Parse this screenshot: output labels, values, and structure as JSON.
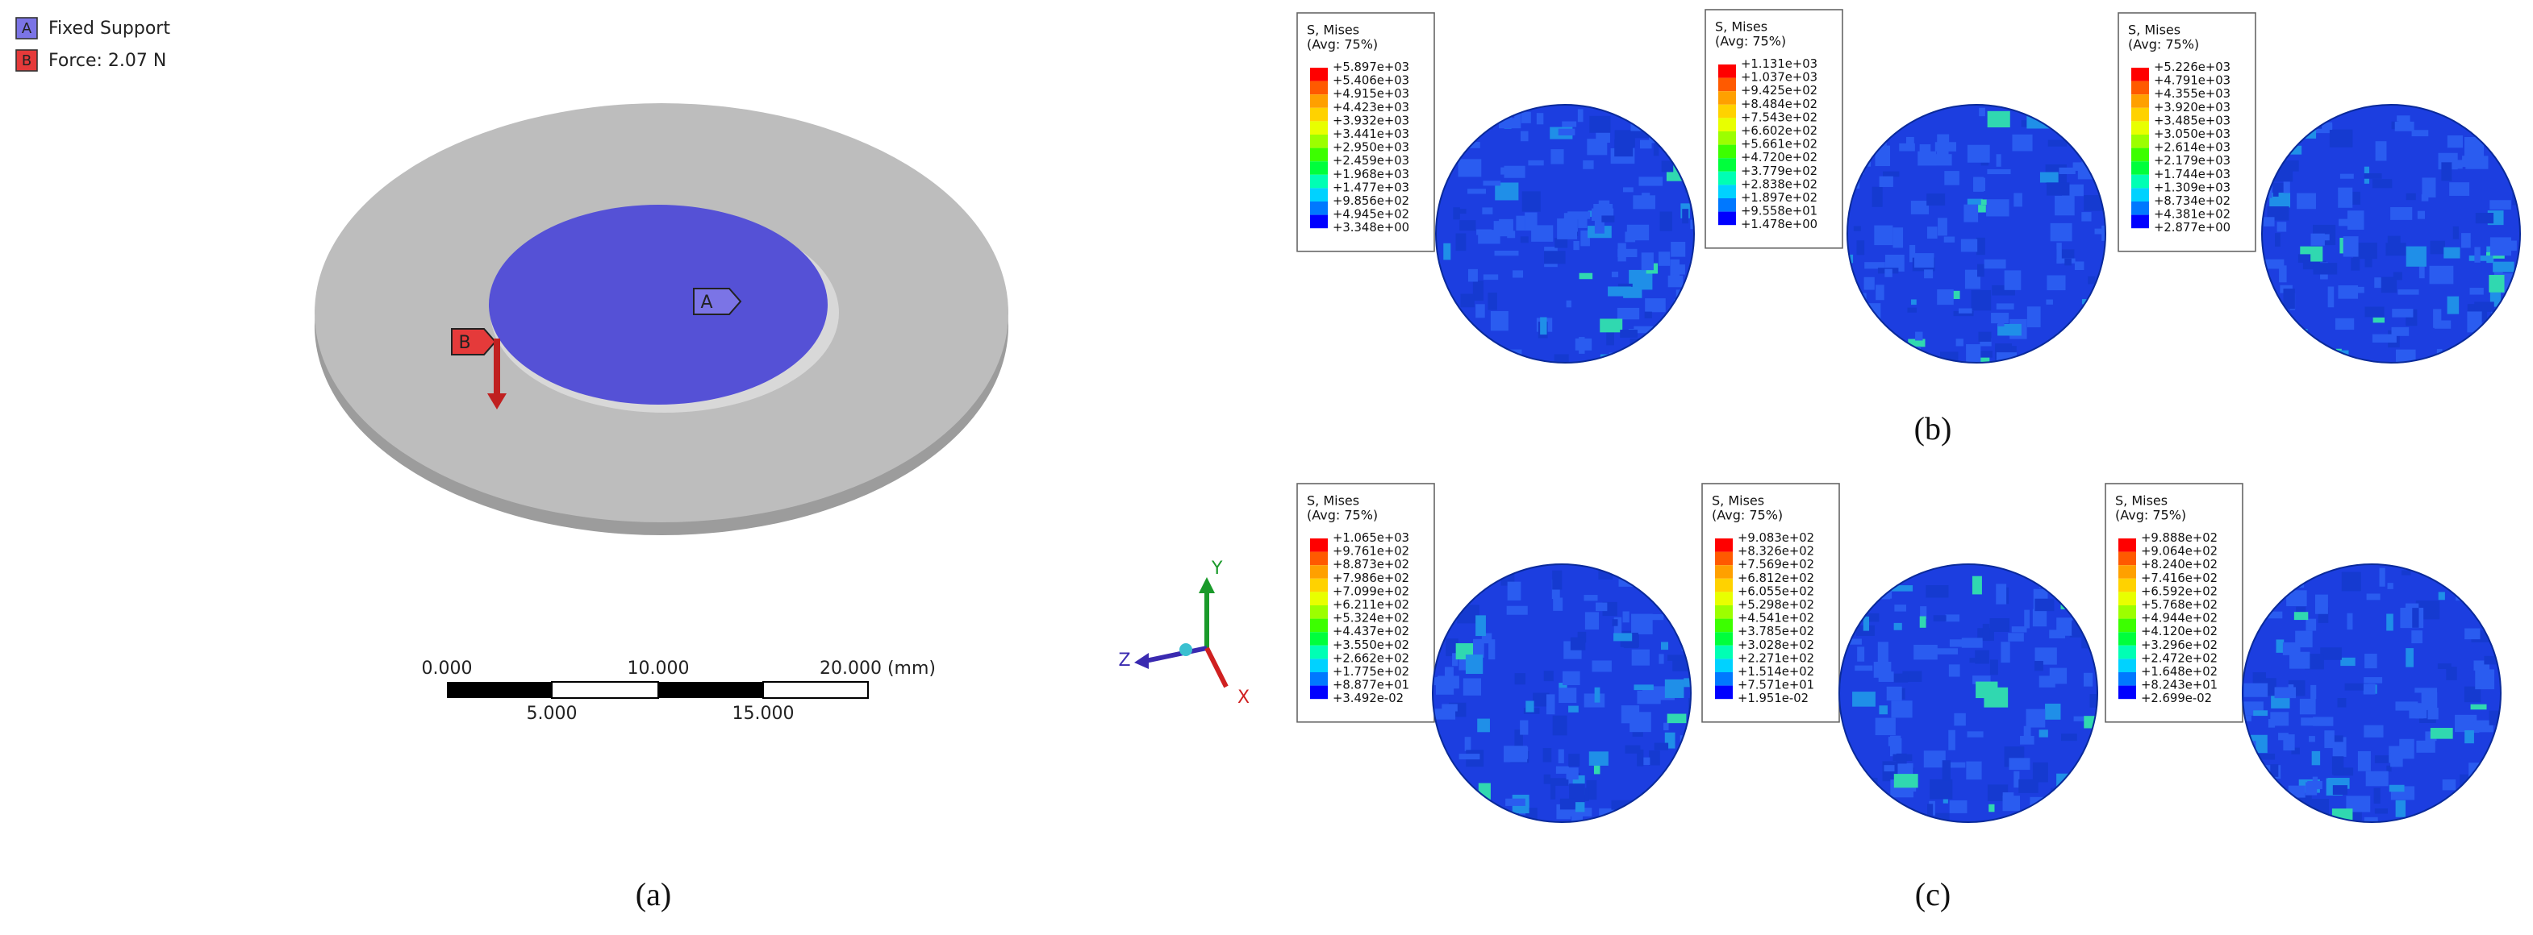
{
  "panel_a": {
    "legend": [
      {
        "tag": "A",
        "label": "Fixed Support"
      },
      {
        "tag": "B",
        "label": "Force: 2.07 N"
      }
    ],
    "scale_bar": {
      "top_labels": [
        "0.000",
        "10.000",
        "20.000 (mm)"
      ],
      "bottom_labels": [
        "5.000",
        "15.000"
      ]
    },
    "caption": "(a)"
  },
  "triad": {
    "y": "Y",
    "z": "Z",
    "x": "X"
  },
  "panel_b": {
    "caption": "(b)",
    "legends": [
      {
        "title": "S, Mises",
        "subtitle": "(Avg: 75%)",
        "values": [
          "+5.897e+03",
          "+5.406e+03",
          "+4.915e+03",
          "+4.423e+03",
          "+3.932e+03",
          "+3.441e+03",
          "+2.950e+03",
          "+2.459e+03",
          "+1.968e+03",
          "+1.477e+03",
          "+9.856e+02",
          "+4.945e+02",
          "+3.348e+00"
        ]
      },
      {
        "title": "S, Mises",
        "subtitle": "(Avg: 75%)",
        "values": [
          "+1.131e+03",
          "+1.037e+03",
          "+9.425e+02",
          "+8.484e+02",
          "+7.543e+02",
          "+6.602e+02",
          "+5.661e+02",
          "+4.720e+02",
          "+3.779e+02",
          "+2.838e+02",
          "+1.897e+02",
          "+9.558e+01",
          "+1.478e+00"
        ]
      },
      {
        "title": "S, Mises",
        "subtitle": "(Avg: 75%)",
        "values": [
          "+5.226e+03",
          "+4.791e+03",
          "+4.355e+03",
          "+3.920e+03",
          "+3.485e+03",
          "+3.050e+03",
          "+2.614e+03",
          "+2.179e+03",
          "+1.744e+03",
          "+1.309e+03",
          "+8.734e+02",
          "+4.381e+02",
          "+2.877e+00"
        ]
      }
    ]
  },
  "panel_c": {
    "caption": "(c)",
    "legends": [
      {
        "title": "S, Mises",
        "subtitle": "(Avg: 75%)",
        "values": [
          "+1.065e+03",
          "+9.761e+02",
          "+8.873e+02",
          "+7.986e+02",
          "+7.099e+02",
          "+6.211e+02",
          "+5.324e+02",
          "+4.437e+02",
          "+3.550e+02",
          "+2.662e+02",
          "+1.775e+02",
          "+8.877e+01",
          "+3.492e-02"
        ]
      },
      {
        "title": "S, Mises",
        "subtitle": "(Avg: 75%)",
        "values": [
          "+9.083e+02",
          "+8.326e+02",
          "+7.569e+02",
          "+6.812e+02",
          "+6.055e+02",
          "+5.298e+02",
          "+4.541e+02",
          "+3.785e+02",
          "+3.028e+02",
          "+2.271e+02",
          "+1.514e+02",
          "+7.571e+01",
          "+1.951e-02"
        ]
      },
      {
        "title": "S, Mises",
        "subtitle": "(Avg: 75%)",
        "values": [
          "+9.888e+02",
          "+9.064e+02",
          "+8.240e+02",
          "+7.416e+02",
          "+6.592e+02",
          "+5.768e+02",
          "+4.944e+02",
          "+4.120e+02",
          "+3.296e+02",
          "+2.472e+02",
          "+1.648e+02",
          "+8.243e+01",
          "+2.699e-02"
        ]
      }
    ]
  }
}
